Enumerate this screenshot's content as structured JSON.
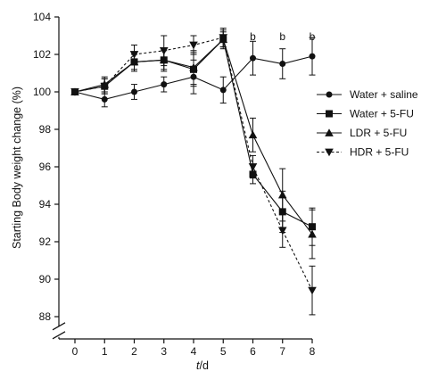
{
  "chart_data": {
    "type": "line",
    "title": "",
    "ylabel": "Starting Body weight change (%)",
    "xlabel_italic": "t",
    "xlabel_rest": "/d",
    "x": [
      0,
      1,
      2,
      3,
      4,
      5,
      6,
      7,
      8
    ],
    "x_ticks": [
      "0",
      "1",
      "2",
      "3",
      "4",
      "5",
      "6",
      "7",
      "8"
    ],
    "y_ticks": [
      "88",
      "90",
      "92",
      "94",
      "96",
      "98",
      "100",
      "102",
      "104"
    ],
    "ylim": [
      87,
      104
    ],
    "axis_break": "y-axis below 88",
    "grid": false,
    "legend_position": "right",
    "series": [
      {
        "name": "Water + saline",
        "marker": "circle",
        "line": "solid",
        "values": [
          100.0,
          99.6,
          100.0,
          100.4,
          100.8,
          100.1,
          101.8,
          101.5,
          101.9
        ],
        "errors": [
          0.0,
          0.4,
          0.4,
          0.4,
          0.9,
          0.7,
          0.9,
          0.8,
          1.0
        ]
      },
      {
        "name": "Water + 5-FU",
        "marker": "square",
        "line": "solid",
        "values": [
          100.0,
          100.3,
          101.6,
          101.7,
          101.2,
          102.8,
          95.6,
          93.6,
          92.8
        ],
        "errors": [
          0.0,
          0.4,
          0.5,
          0.6,
          0.9,
          0.5,
          0.5,
          1.1,
          1.0
        ]
      },
      {
        "name": "LDR + 5-FU",
        "marker": "triangle-up",
        "line": "solid",
        "values": [
          100.0,
          100.4,
          101.6,
          101.7,
          101.3,
          102.8,
          97.7,
          94.5,
          92.4
        ],
        "errors": [
          0.0,
          0.4,
          0.4,
          0.5,
          0.9,
          0.4,
          0.9,
          1.4,
          1.3
        ]
      },
      {
        "name": "HDR + 5-FU",
        "marker": "triangle-down",
        "line": "dashed",
        "values": [
          100.0,
          100.3,
          102.0,
          102.2,
          102.5,
          102.9,
          96.0,
          92.6,
          89.4
        ],
        "errors": [
          0.0,
          0.4,
          0.5,
          0.8,
          0.5,
          0.5,
          0.6,
          0.9,
          1.3
        ]
      }
    ],
    "annotations": [
      {
        "x": 6,
        "text": "b"
      },
      {
        "x": 7,
        "text": "b"
      },
      {
        "x": 8,
        "text": "b"
      }
    ]
  }
}
